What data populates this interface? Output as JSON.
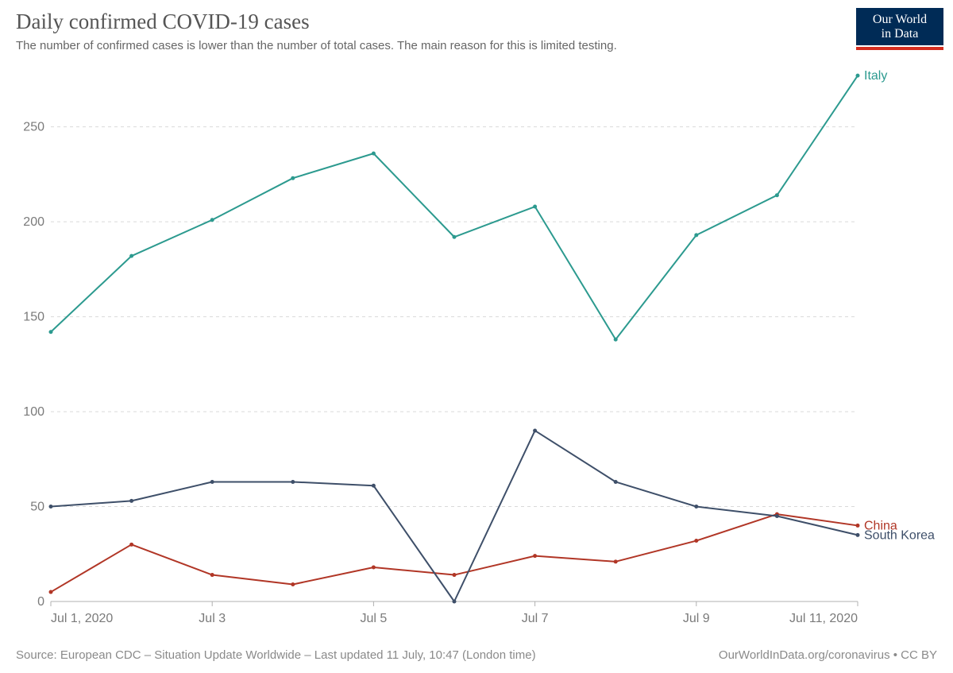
{
  "header": {
    "title": "Daily confirmed COVID-19 cases",
    "subtitle": "The number of confirmed cases is lower than the number of total cases. The main reason for this is limited testing."
  },
  "logo": {
    "line1": "Our World",
    "line2": "in Data",
    "box_bg": "#002b56",
    "box_text": "#ffffff",
    "underline_color": "#d42d1f"
  },
  "footer": {
    "source": "Source: European CDC – Situation Update Worldwide – Last updated 11 July, 10:47 (London time)",
    "attribution": "OurWorldInData.org/coronavirus • CC BY"
  },
  "chart": {
    "type": "line",
    "background_color": "#ffffff",
    "title_fontsize": 27,
    "subtitle_fontsize": 15,
    "axis_label_fontsize": 16,
    "tick_fontsize": 16,
    "series_label_fontsize": 16,
    "grid_color": "#d9d9d9",
    "axis_color": "#7a7a7a",
    "axis_line_color": "#b0b0b0",
    "line_width": 2,
    "marker_radius": 2.5,
    "x": {
      "domain_min": 0,
      "domain_max": 10,
      "tick_positions": [
        0,
        2,
        4,
        6,
        8,
        10
      ],
      "tick_labels": [
        "Jul 1, 2020",
        "Jul 3",
        "Jul 5",
        "Jul 7",
        "Jul 9",
        "Jul 11, 2020"
      ]
    },
    "y": {
      "domain_min": 0,
      "domain_max": 280,
      "tick_positions": [
        0,
        50,
        100,
        150,
        200,
        250
      ],
      "tick_labels": [
        "0",
        "50",
        "100",
        "150",
        "200",
        "250"
      ]
    },
    "series": [
      {
        "name": "Italy",
        "color": "#2c9a8f",
        "label": "Italy",
        "values": [
          142,
          182,
          201,
          223,
          236,
          192,
          208,
          138,
          193,
          214,
          277
        ]
      },
      {
        "name": "China",
        "color": "#b13626",
        "label": "China",
        "values": [
          5,
          30,
          14,
          9,
          18,
          14,
          24,
          21,
          32,
          46,
          40
        ]
      },
      {
        "name": "South Korea",
        "color": "#3e4f69",
        "label": "South Korea",
        "values": [
          50,
          53,
          63,
          63,
          61,
          0,
          90,
          63,
          50,
          45,
          35
        ]
      }
    ]
  }
}
